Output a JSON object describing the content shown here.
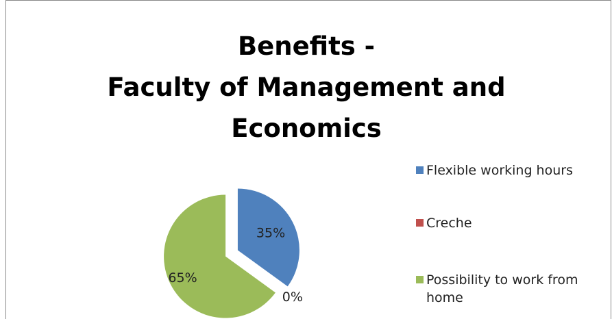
{
  "chart_data": {
    "type": "pie",
    "title": "Benefits -\nFaculty of Management and\nEconomics",
    "categories": [
      "Flexible working hours",
      "Creche",
      "Possibility to work from home"
    ],
    "values": [
      35,
      0,
      65
    ],
    "value_labels": [
      "35%",
      "0%",
      "65%"
    ],
    "colors": [
      "#4f81bd",
      "#c0504d",
      "#9bbb59"
    ],
    "legend": "right"
  }
}
